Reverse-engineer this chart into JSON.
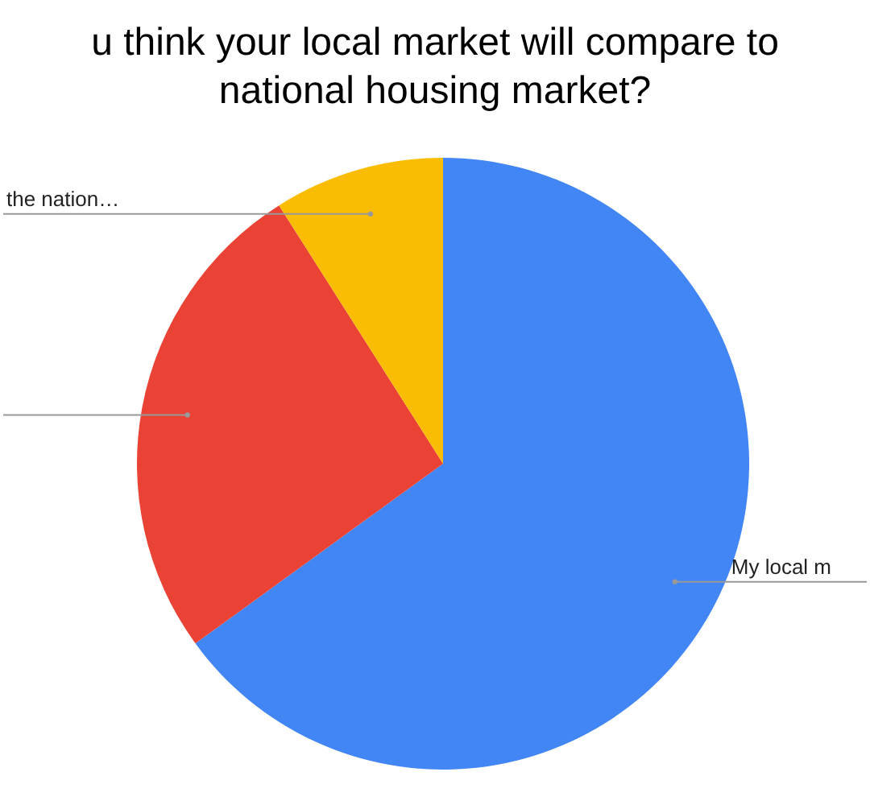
{
  "chart_data": {
    "type": "pie",
    "title": "u think your local market will compare to\nnational housing market?",
    "categories": [
      "My local m",
      null,
      "the nation…"
    ],
    "values": [
      65,
      26,
      9
    ],
    "colors": [
      "#4285f4",
      "#ea4335",
      "#fbbc04"
    ]
  }
}
